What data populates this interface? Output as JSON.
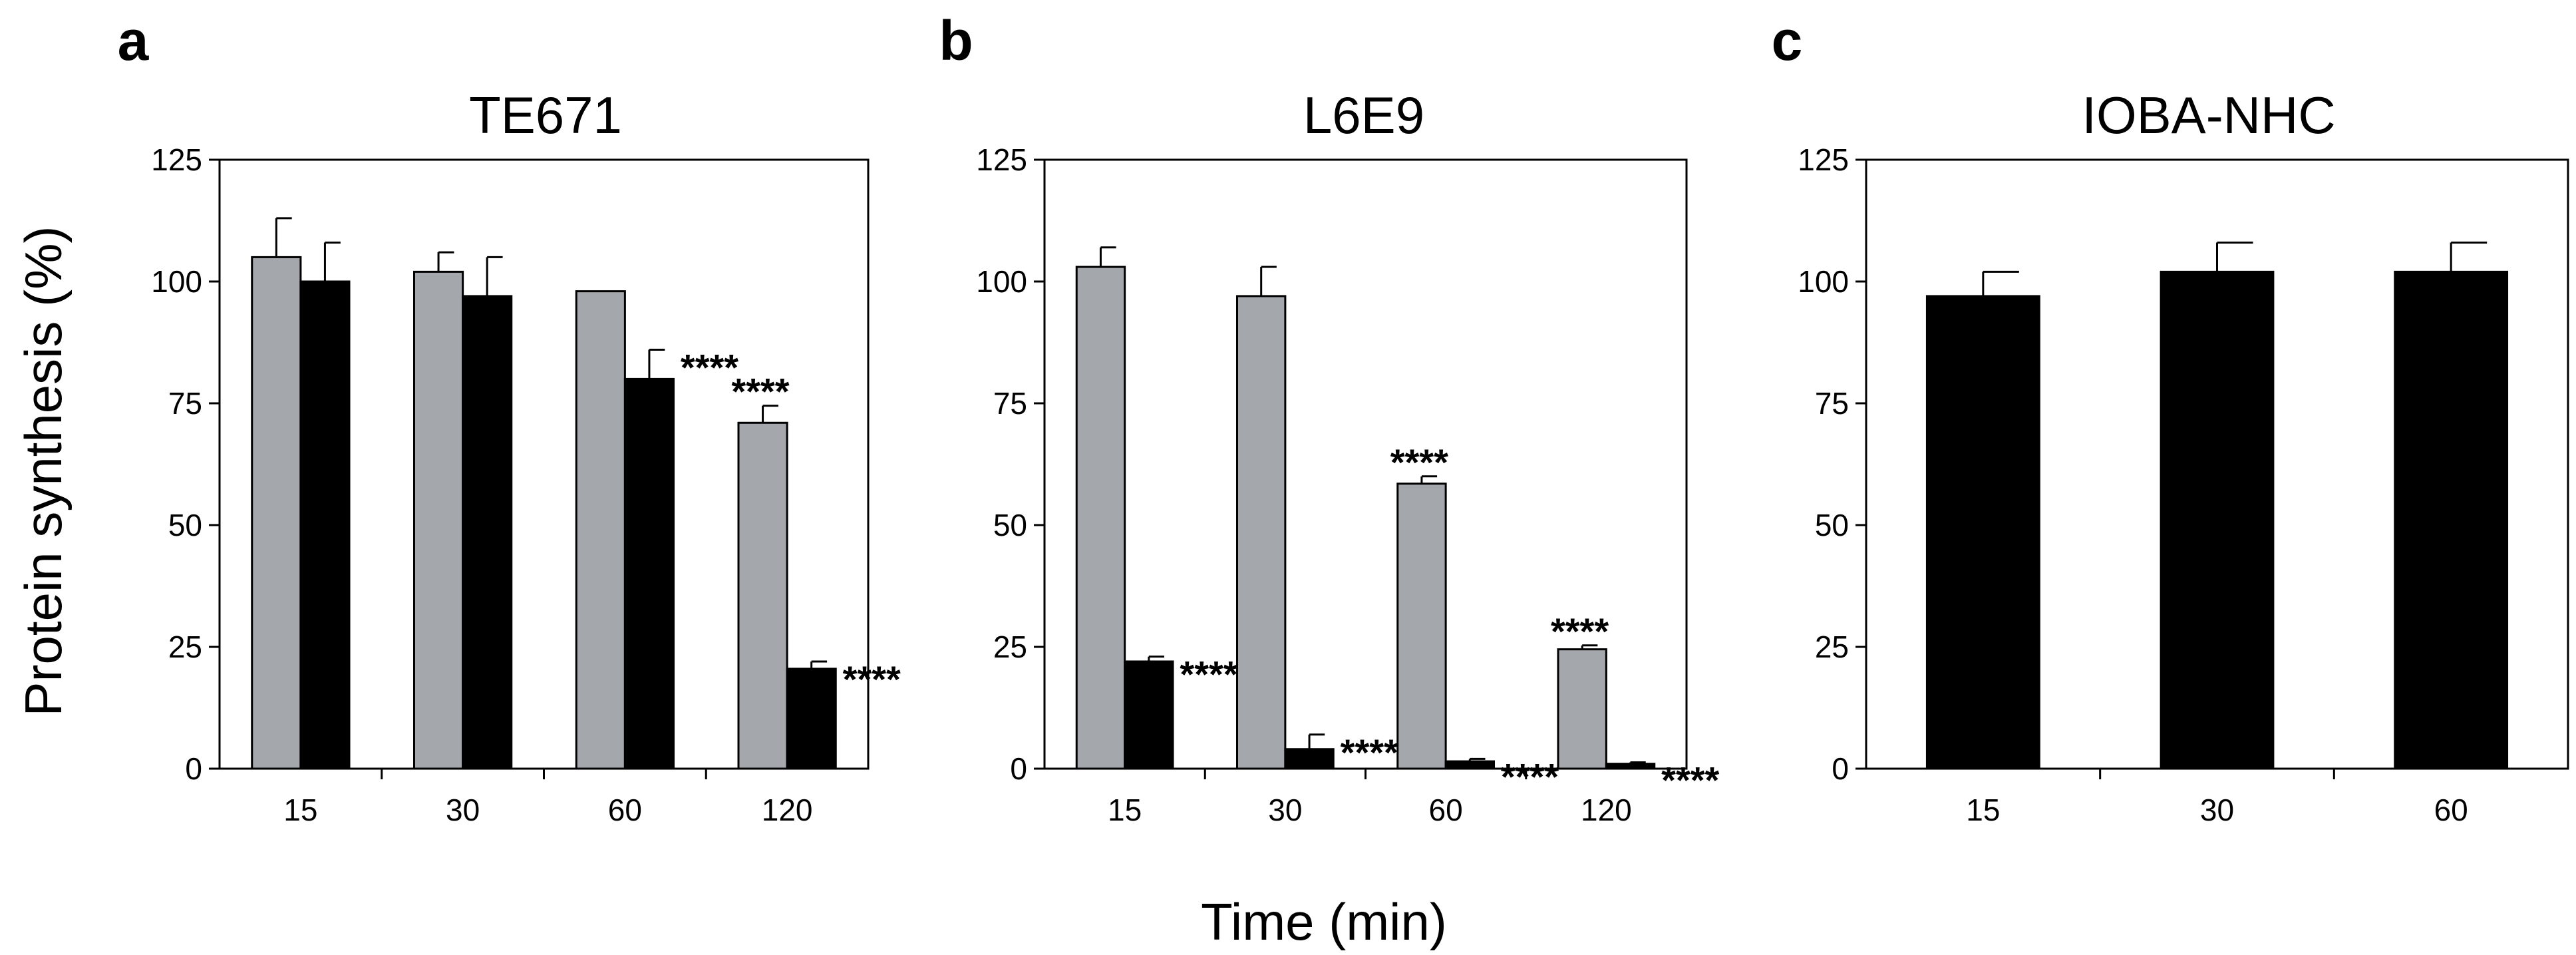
{
  "colors": {
    "gray": "#a4a7ab",
    "black": "#000000",
    "axis": "#000000"
  },
  "ylabel": "Protein synthesis (%)",
  "xlabel": "Time (min)",
  "chart_data": [
    {
      "type": "bar",
      "letter": "a",
      "title": "TE671",
      "categories": [
        "15",
        "30",
        "60",
        "120"
      ],
      "ylim": [
        0,
        125
      ],
      "yticks": [
        "0",
        "25",
        "50",
        "75",
        "100",
        "125"
      ],
      "series": [
        {
          "name": "gray",
          "values": [
            105,
            102,
            98,
            71
          ],
          "errors": [
            8,
            4,
            0,
            3.5
          ],
          "sig": [
            "",
            "",
            "",
            "****"
          ]
        },
        {
          "name": "black",
          "values": [
            100,
            97,
            80,
            20.5
          ],
          "errors": [
            8,
            8,
            6,
            1.5
          ],
          "sig": [
            "",
            "",
            "****",
            "****"
          ]
        }
      ]
    },
    {
      "type": "bar",
      "letter": "b",
      "title": "L6E9",
      "categories": [
        "15",
        "30",
        "60",
        "120"
      ],
      "ylim": [
        0,
        125
      ],
      "yticks": [
        "0",
        "25",
        "50",
        "75",
        "100",
        "125"
      ],
      "series": [
        {
          "name": "gray",
          "values": [
            103,
            97,
            58.5,
            24.5
          ],
          "errors": [
            4,
            6,
            1.5,
            0.8
          ],
          "sig": [
            "",
            "",
            "****",
            "****"
          ]
        },
        {
          "name": "black",
          "values": [
            22,
            4,
            1.5,
            1
          ],
          "errors": [
            1,
            3,
            0.5,
            0.3
          ],
          "sig": [
            "****",
            "****",
            "****",
            "****"
          ]
        }
      ]
    },
    {
      "type": "bar",
      "letter": "c",
      "title": "IOBA-NHC",
      "categories": [
        "15",
        "30",
        "60"
      ],
      "ylim": [
        0,
        125
      ],
      "yticks": [
        "0",
        "25",
        "50",
        "75",
        "100",
        "125"
      ],
      "series": [
        {
          "name": "black",
          "values": [
            97,
            102,
            102
          ],
          "errors": [
            5,
            6,
            6
          ],
          "sig": [
            "",
            "",
            ""
          ]
        }
      ]
    }
  ]
}
